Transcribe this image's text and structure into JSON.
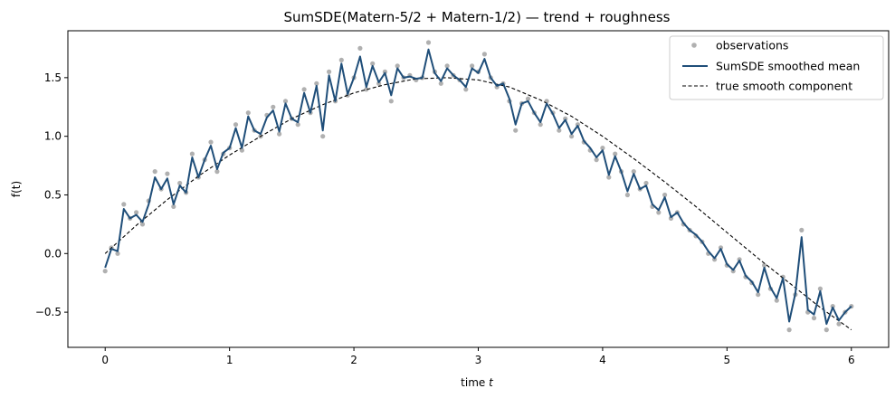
{
  "colors": {
    "observations": "#b0b0b0",
    "smoothed_mean": "#1f4e79",
    "true_component": "#000000"
  },
  "chart_data": {
    "type": "line",
    "title": "SumSDE(Matern-5/2 + Matern-1/2) — trend + roughness",
    "xlabel": "time",
    "xlabel_var": "t",
    "ylabel": "f(t)",
    "xlim": [
      -0.3,
      6.3
    ],
    "ylim": [
      -0.8,
      1.9
    ],
    "xticks": [
      0,
      1,
      2,
      3,
      4,
      5,
      6
    ],
    "xtick_labels": [
      "0",
      "1",
      "2",
      "3",
      "4",
      "5",
      "6"
    ],
    "yticks": [
      -0.5,
      0.0,
      0.5,
      1.0,
      1.5
    ],
    "ytick_labels": [
      "−0.5",
      "0.0",
      "0.5",
      "1.0",
      "1.5"
    ],
    "grid": false,
    "legend_position": "top-right",
    "series": [
      {
        "name": "observations",
        "kind": "scatter",
        "x": [
          0.0,
          0.05,
          0.1,
          0.15,
          0.2,
          0.25,
          0.3,
          0.35,
          0.4,
          0.45,
          0.5,
          0.55,
          0.6,
          0.65,
          0.7,
          0.75,
          0.8,
          0.85,
          0.9,
          0.95,
          1.0,
          1.05,
          1.1,
          1.15,
          1.2,
          1.25,
          1.3,
          1.35,
          1.4,
          1.45,
          1.5,
          1.55,
          1.6,
          1.65,
          1.7,
          1.75,
          1.8,
          1.85,
          1.9,
          1.95,
          2.0,
          2.05,
          2.1,
          2.15,
          2.2,
          2.25,
          2.3,
          2.35,
          2.4,
          2.45,
          2.5,
          2.55,
          2.6,
          2.65,
          2.7,
          2.75,
          2.8,
          2.85,
          2.9,
          2.95,
          3.0,
          3.05,
          3.1,
          3.15,
          3.2,
          3.25,
          3.3,
          3.35,
          3.4,
          3.45,
          3.5,
          3.55,
          3.6,
          3.65,
          3.7,
          3.75,
          3.8,
          3.85,
          3.9,
          3.95,
          4.0,
          4.05,
          4.1,
          4.15,
          4.2,
          4.25,
          4.3,
          4.35,
          4.4,
          4.45,
          4.5,
          4.55,
          4.6,
          4.65,
          4.7,
          4.75,
          4.8,
          4.85,
          4.9,
          4.95,
          5.0,
          5.05,
          5.1,
          5.15,
          5.2,
          5.25,
          5.3,
          5.35,
          5.4,
          5.45,
          5.5,
          5.55,
          5.6,
          5.65,
          5.7,
          5.75,
          5.8,
          5.85,
          5.9,
          5.95,
          6.0
        ],
        "y": [
          -0.15,
          0.05,
          0.0,
          0.42,
          0.3,
          0.35,
          0.25,
          0.45,
          0.7,
          0.55,
          0.68,
          0.4,
          0.6,
          0.52,
          0.85,
          0.65,
          0.8,
          0.95,
          0.7,
          0.85,
          0.9,
          1.1,
          0.88,
          1.2,
          1.05,
          1.0,
          1.18,
          1.25,
          1.02,
          1.3,
          1.15,
          1.1,
          1.4,
          1.2,
          1.45,
          1.0,
          1.55,
          1.3,
          1.65,
          1.35,
          1.5,
          1.75,
          1.4,
          1.62,
          1.45,
          1.55,
          1.3,
          1.6,
          1.5,
          1.52,
          1.48,
          1.5,
          1.8,
          1.55,
          1.45,
          1.6,
          1.52,
          1.48,
          1.4,
          1.6,
          1.55,
          1.7,
          1.5,
          1.42,
          1.45,
          1.3,
          1.05,
          1.28,
          1.32,
          1.2,
          1.1,
          1.3,
          1.2,
          1.05,
          1.15,
          1.0,
          1.1,
          0.95,
          0.88,
          0.8,
          0.9,
          0.65,
          0.85,
          0.7,
          0.5,
          0.7,
          0.55,
          0.6,
          0.4,
          0.35,
          0.5,
          0.3,
          0.35,
          0.25,
          0.2,
          0.15,
          0.1,
          0.0,
          -0.05,
          0.05,
          -0.1,
          -0.15,
          -0.05,
          -0.2,
          -0.25,
          -0.35,
          -0.1,
          -0.3,
          -0.4,
          -0.2,
          -0.65,
          -0.35,
          0.2,
          -0.5,
          -0.55,
          -0.3,
          -0.65,
          -0.45,
          -0.6,
          -0.5,
          -0.45
        ]
      },
      {
        "name": "SumSDE smoothed mean",
        "kind": "line",
        "x": [
          0.0,
          0.05,
          0.1,
          0.15,
          0.2,
          0.25,
          0.3,
          0.35,
          0.4,
          0.45,
          0.5,
          0.55,
          0.6,
          0.65,
          0.7,
          0.75,
          0.8,
          0.85,
          0.9,
          0.95,
          1.0,
          1.05,
          1.1,
          1.15,
          1.2,
          1.25,
          1.3,
          1.35,
          1.4,
          1.45,
          1.5,
          1.55,
          1.6,
          1.65,
          1.7,
          1.75,
          1.8,
          1.85,
          1.9,
          1.95,
          2.0,
          2.05,
          2.1,
          2.15,
          2.2,
          2.25,
          2.3,
          2.35,
          2.4,
          2.45,
          2.5,
          2.55,
          2.6,
          2.65,
          2.7,
          2.75,
          2.8,
          2.85,
          2.9,
          2.95,
          3.0,
          3.05,
          3.1,
          3.15,
          3.2,
          3.25,
          3.3,
          3.35,
          3.4,
          3.45,
          3.5,
          3.55,
          3.6,
          3.65,
          3.7,
          3.75,
          3.8,
          3.85,
          3.9,
          3.95,
          4.0,
          4.05,
          4.1,
          4.15,
          4.2,
          4.25,
          4.3,
          4.35,
          4.4,
          4.45,
          4.5,
          4.55,
          4.6,
          4.65,
          4.7,
          4.75,
          4.8,
          4.85,
          4.9,
          4.95,
          5.0,
          5.05,
          5.1,
          5.15,
          5.2,
          5.25,
          5.3,
          5.35,
          5.4,
          5.45,
          5.5,
          5.55,
          5.6,
          5.65,
          5.7,
          5.75,
          5.8,
          5.85,
          5.9,
          5.95,
          6.0
        ],
        "y": [
          -0.12,
          0.04,
          0.02,
          0.38,
          0.3,
          0.33,
          0.27,
          0.42,
          0.65,
          0.55,
          0.64,
          0.42,
          0.58,
          0.52,
          0.82,
          0.65,
          0.8,
          0.92,
          0.72,
          0.86,
          0.9,
          1.07,
          0.9,
          1.17,
          1.05,
          1.02,
          1.16,
          1.22,
          1.04,
          1.28,
          1.15,
          1.12,
          1.37,
          1.2,
          1.43,
          1.05,
          1.52,
          1.3,
          1.62,
          1.36,
          1.5,
          1.68,
          1.42,
          1.6,
          1.46,
          1.54,
          1.35,
          1.58,
          1.5,
          1.51,
          1.49,
          1.5,
          1.74,
          1.54,
          1.47,
          1.58,
          1.52,
          1.48,
          1.42,
          1.58,
          1.54,
          1.66,
          1.5,
          1.43,
          1.45,
          1.32,
          1.1,
          1.28,
          1.3,
          1.2,
          1.12,
          1.28,
          1.19,
          1.07,
          1.14,
          1.02,
          1.09,
          0.96,
          0.9,
          0.82,
          0.88,
          0.67,
          0.83,
          0.7,
          0.53,
          0.68,
          0.55,
          0.58,
          0.42,
          0.37,
          0.48,
          0.31,
          0.35,
          0.26,
          0.2,
          0.16,
          0.1,
          0.02,
          -0.04,
          0.04,
          -0.09,
          -0.14,
          -0.06,
          -0.19,
          -0.24,
          -0.33,
          -0.12,
          -0.29,
          -0.38,
          -0.21,
          -0.58,
          -0.34,
          0.14,
          -0.48,
          -0.52,
          -0.32,
          -0.6,
          -0.46,
          -0.57,
          -0.5,
          -0.45
        ]
      },
      {
        "name": "true smooth component",
        "kind": "line",
        "style": "dashed",
        "x": [
          0.0,
          0.25,
          0.5,
          0.75,
          1.0,
          1.25,
          1.5,
          1.75,
          2.0,
          2.25,
          2.5,
          2.75,
          3.0,
          3.25,
          3.5,
          3.75,
          4.0,
          4.25,
          4.5,
          4.75,
          5.0,
          5.25,
          5.5,
          5.75,
          6.0
        ],
        "y": [
          0.0,
          0.24,
          0.46,
          0.66,
          0.84,
          1.0,
          1.15,
          1.27,
          1.37,
          1.44,
          1.49,
          1.5,
          1.48,
          1.42,
          1.31,
          1.17,
          1.0,
          0.81,
          0.61,
          0.4,
          0.18,
          -0.04,
          -0.25,
          -0.46,
          -0.65
        ]
      }
    ]
  }
}
